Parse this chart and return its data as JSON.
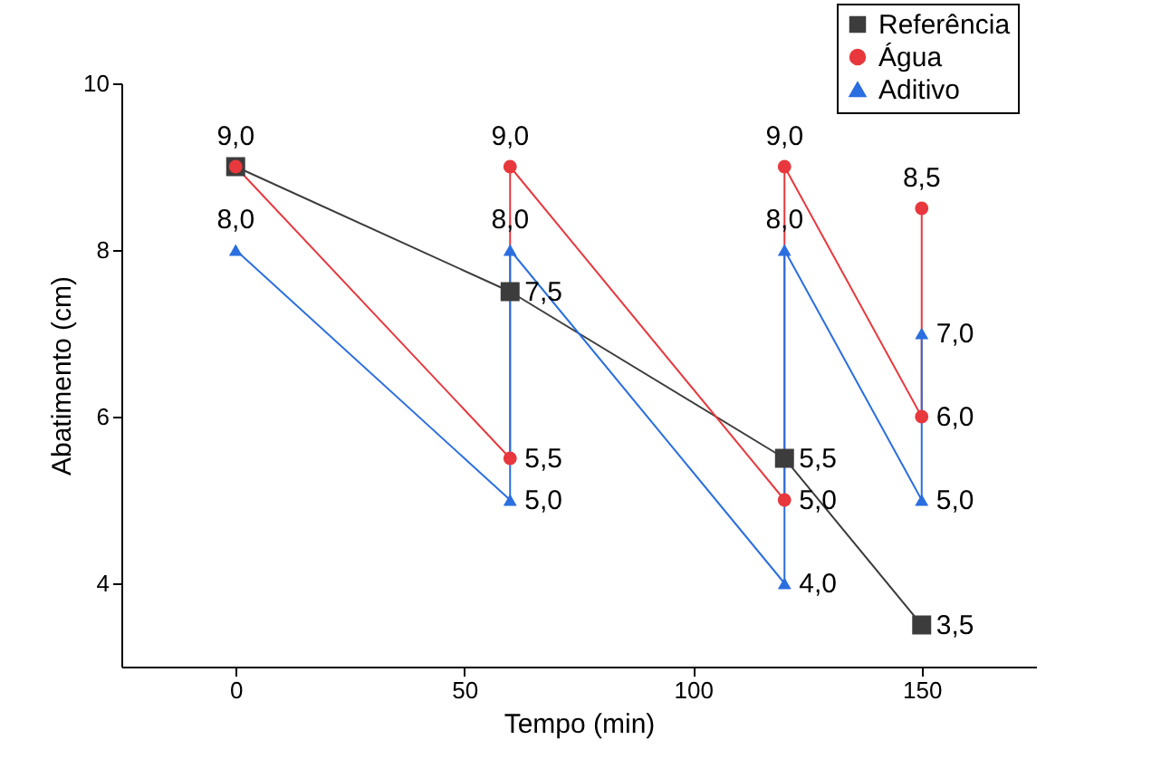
{
  "chart_data": {
    "type": "line",
    "xlabel": "Tempo (min)",
    "ylabel": "Abatimento (cm)",
    "xlim": [
      -25,
      175
    ],
    "xticks": [
      0,
      50,
      100,
      150
    ],
    "ylim": [
      3,
      10
    ],
    "yticks": [
      4,
      6,
      8,
      10
    ],
    "grid": false,
    "legend": "top right",
    "line_style": "solid",
    "series": [
      {
        "name": "Referência",
        "color": "#3c3c3c",
        "marker": "square",
        "x": [
          0,
          60,
          120,
          150
        ],
        "values": [
          9.0,
          7.5,
          5.5,
          3.5
        ],
        "value_labels": [
          null,
          "7,5",
          "5,5",
          "3,5"
        ]
      },
      {
        "name": "Água",
        "color": "#e8383d",
        "marker": "circle",
        "x": [
          0,
          60,
          60,
          120,
          120,
          150,
          150
        ],
        "values": [
          9.0,
          5.5,
          9.0,
          5.0,
          9.0,
          6.0,
          8.5
        ],
        "value_labels": [
          "9,0",
          "5,5",
          "9,0",
          "5,0",
          "9,0",
          "6,0",
          "8,5"
        ]
      },
      {
        "name": "Aditivo",
        "color": "#2a6ee0",
        "marker": "triangle",
        "x": [
          0,
          60,
          60,
          120,
          120,
          150,
          150
        ],
        "values": [
          8.0,
          5.0,
          8.0,
          4.0,
          8.0,
          5.0,
          7.0
        ],
        "value_labels": [
          "8,0",
          "5,0",
          "8,0",
          "4,0",
          "8,0",
          "5,0",
          "7,0"
        ]
      }
    ]
  }
}
